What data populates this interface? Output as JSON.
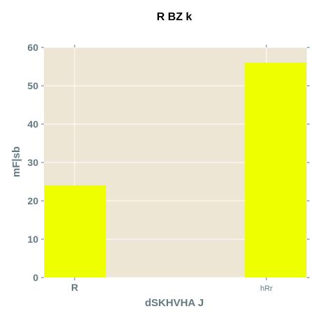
{
  "chart_data": {
    "type": "bar",
    "title": "R BZ k",
    "xlabel": "dSKHVHA J",
    "ylabel": "mF|sb",
    "categories": [
      "R",
      "hRr"
    ],
    "series": [
      {
        "values": [
          24,
          56
        ]
      }
    ],
    "ylim": [
      0,
      60
    ],
    "yticks": [
      0,
      10,
      20,
      30,
      40,
      50,
      60
    ],
    "grid": true,
    "legend": "none",
    "colors": {
      "bar": "#eeff00",
      "plot_background": "#ede6d5",
      "grid": "#ffffff",
      "axis_text": "#637981",
      "title_text": "#000000"
    }
  }
}
